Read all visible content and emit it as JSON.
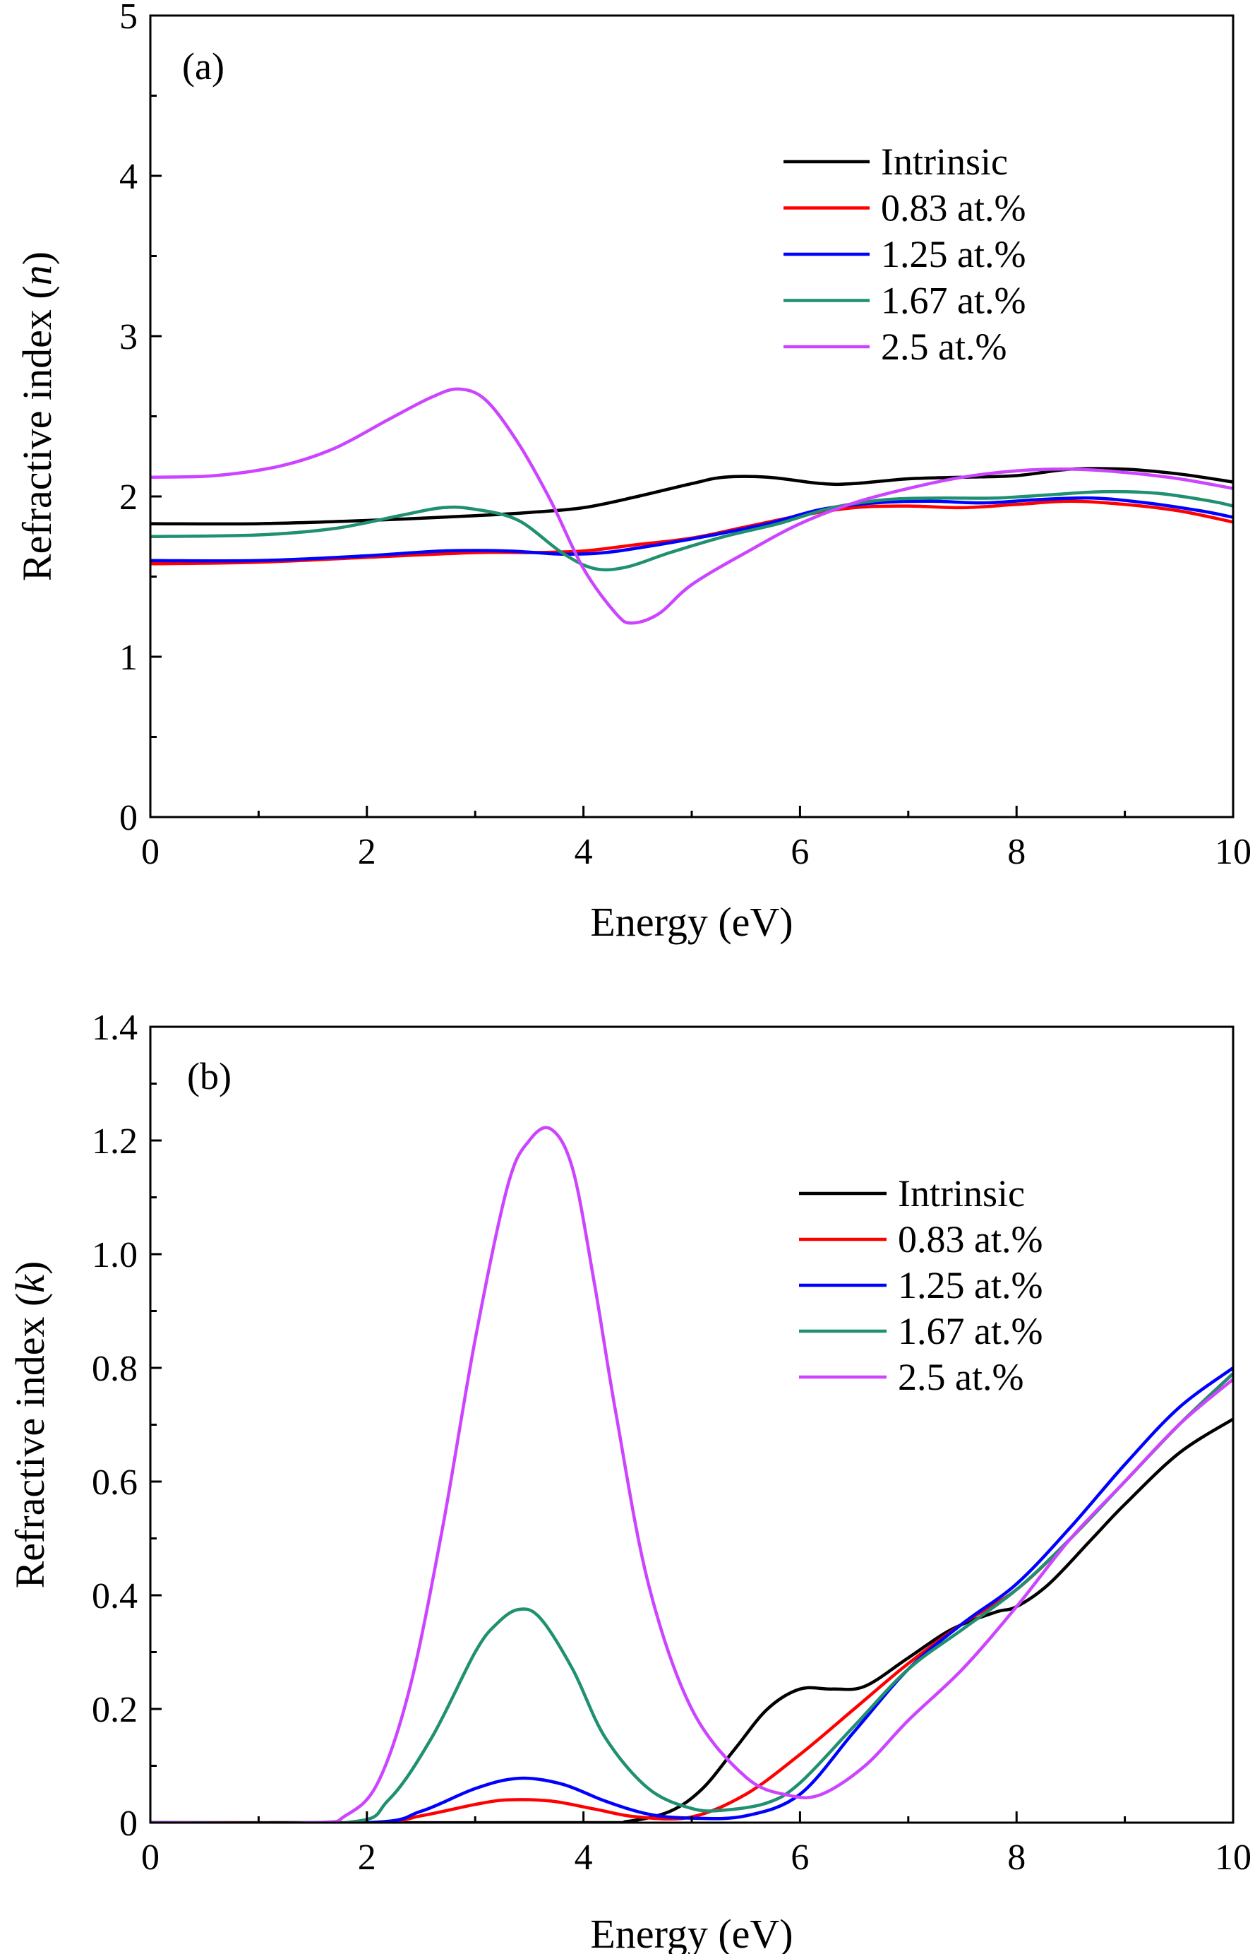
{
  "chart_data": [
    {
      "type": "line",
      "panel_label": "(a)",
      "xlabel": "Energy (eV)",
      "ylabel_text": "Refractive index (",
      "ylabel_var": "n",
      "ylabel_close": ")",
      "xlim": [
        0,
        10
      ],
      "ylim": [
        0,
        5
      ],
      "xticks": [
        "0",
        "2",
        "4",
        "6",
        "8",
        "10"
      ],
      "yticks": [
        "0",
        "1",
        "2",
        "3",
        "4",
        "5"
      ],
      "grid": false,
      "legend_position": "top-right",
      "series": [
        {
          "name": "Intrinsic",
          "color": "#000000",
          "x": [
            0,
            1,
            2,
            3,
            3.5,
            4,
            4.5,
            5,
            5.3,
            5.7,
            6.2,
            6.5,
            7,
            7.5,
            8,
            8.5,
            9,
            9.5,
            10
          ],
          "y": [
            1.83,
            1.83,
            1.85,
            1.88,
            1.9,
            1.93,
            2.0,
            2.08,
            2.12,
            2.12,
            2.08,
            2.08,
            2.11,
            2.12,
            2.13,
            2.17,
            2.17,
            2.14,
            2.09
          ]
        },
        {
          "name": "0.83 at.%",
          "color": "#ff0000",
          "x": [
            0,
            1,
            2,
            3,
            3.5,
            4,
            4.5,
            5,
            5.5,
            6,
            6.5,
            7,
            7.5,
            8,
            8.5,
            9,
            9.5,
            10
          ],
          "y": [
            1.58,
            1.59,
            1.62,
            1.65,
            1.65,
            1.66,
            1.7,
            1.74,
            1.81,
            1.88,
            1.93,
            1.94,
            1.93,
            1.95,
            1.97,
            1.95,
            1.91,
            1.84
          ]
        },
        {
          "name": "1.25 at.%",
          "color": "#0000ff",
          "x": [
            0,
            1,
            2,
            2.7,
            3.3,
            3.8,
            4.2,
            4.7,
            5.2,
            5.7,
            6.2,
            6.7,
            7.2,
            7.7,
            8.2,
            8.7,
            9.2,
            9.7,
            10
          ],
          "y": [
            1.6,
            1.6,
            1.63,
            1.66,
            1.66,
            1.64,
            1.65,
            1.7,
            1.76,
            1.83,
            1.92,
            1.96,
            1.97,
            1.96,
            1.98,
            1.99,
            1.96,
            1.91,
            1.87
          ]
        },
        {
          "name": "1.67 at.%",
          "color": "#1f9070",
          "x": [
            0,
            1,
            1.7,
            2.3,
            2.7,
            3.0,
            3.4,
            3.8,
            4.1,
            4.4,
            4.8,
            5.3,
            5.8,
            6.3,
            6.8,
            7.3,
            7.8,
            8.3,
            8.8,
            9.3,
            9.8,
            10
          ],
          "y": [
            1.75,
            1.76,
            1.8,
            1.88,
            1.93,
            1.92,
            1.85,
            1.65,
            1.55,
            1.56,
            1.65,
            1.75,
            1.83,
            1.93,
            1.98,
            1.99,
            1.99,
            2.01,
            2.03,
            2.02,
            1.97,
            1.94
          ]
        },
        {
          "name": "2.5 at.%",
          "color": "#cc44ff",
          "x": [
            0,
            0.6,
            1.2,
            1.7,
            2.2,
            2.6,
            2.85,
            3.1,
            3.4,
            3.7,
            4.0,
            4.3,
            4.45,
            4.7,
            5.0,
            5.5,
            6.0,
            6.5,
            7.0,
            7.5,
            8.0,
            8.5,
            9.0,
            9.5,
            10
          ],
          "y": [
            2.12,
            2.13,
            2.19,
            2.3,
            2.48,
            2.62,
            2.67,
            2.6,
            2.33,
            1.97,
            1.55,
            1.27,
            1.21,
            1.27,
            1.45,
            1.65,
            1.83,
            1.96,
            2.05,
            2.12,
            2.16,
            2.17,
            2.15,
            2.11,
            2.05
          ]
        }
      ]
    },
    {
      "type": "line",
      "panel_label": "(b)",
      "xlabel": "Energy (eV)",
      "ylabel_text": "Refractive index (",
      "ylabel_var": "k",
      "ylabel_close": ")",
      "xlim": [
        0,
        10
      ],
      "ylim": [
        0,
        1.4
      ],
      "xticks": [
        "0",
        "2",
        "4",
        "6",
        "8",
        "10"
      ],
      "yticks": [
        "0",
        "0.2",
        "0.4",
        "0.6",
        "0.8",
        "1.0",
        "1.2",
        "1.4"
      ],
      "grid": false,
      "legend_position": "right",
      "series": [
        {
          "name": "Intrinsic",
          "color": "#000000",
          "x": [
            0,
            4.0,
            4.4,
            4.8,
            5.1,
            5.4,
            5.7,
            6.0,
            6.3,
            6.6,
            7.0,
            7.4,
            7.8,
            8.0,
            8.3,
            8.7,
            9.0,
            9.5,
            10
          ],
          "y": [
            0,
            0,
            0.002,
            0.02,
            0.06,
            0.13,
            0.2,
            0.235,
            0.235,
            0.24,
            0.29,
            0.34,
            0.37,
            0.38,
            0.42,
            0.5,
            0.56,
            0.65,
            0.71
          ]
        },
        {
          "name": "0.83 at.%",
          "color": "#ff0000",
          "x": [
            0,
            2.0,
            2.5,
            3.0,
            3.3,
            3.7,
            4.1,
            4.5,
            5.0,
            5.5,
            6.0,
            6.5,
            7.0,
            7.5,
            8.0,
            8.5,
            9.0,
            9.5,
            10
          ],
          "y": [
            0,
            0,
            0.012,
            0.032,
            0.04,
            0.038,
            0.024,
            0.01,
            0.01,
            0.05,
            0.12,
            0.2,
            0.28,
            0.35,
            0.41,
            0.5,
            0.6,
            0.7,
            0.79
          ]
        },
        {
          "name": "1.25 at.%",
          "color": "#0000ff",
          "x": [
            0,
            2.0,
            2.5,
            3.0,
            3.4,
            3.8,
            4.2,
            4.6,
            5.0,
            5.5,
            6.0,
            6.5,
            7.0,
            7.5,
            8.0,
            8.5,
            9.0,
            9.5,
            10
          ],
          "y": [
            0,
            0,
            0.02,
            0.06,
            0.078,
            0.068,
            0.038,
            0.015,
            0.008,
            0.012,
            0.05,
            0.16,
            0.27,
            0.35,
            0.42,
            0.52,
            0.63,
            0.73,
            0.8
          ]
        },
        {
          "name": "1.67 at.%",
          "color": "#1f9070",
          "x": [
            0,
            1.8,
            2.2,
            2.6,
            3.0,
            3.2,
            3.4,
            3.6,
            3.9,
            4.2,
            4.6,
            5.0,
            5.3,
            5.7,
            6.0,
            6.5,
            7.0,
            7.5,
            8.0,
            8.5,
            9.0,
            9.5,
            10
          ],
          "y": [
            0,
            0,
            0.04,
            0.15,
            0.3,
            0.35,
            0.375,
            0.36,
            0.27,
            0.15,
            0.06,
            0.025,
            0.022,
            0.035,
            0.07,
            0.17,
            0.27,
            0.34,
            0.41,
            0.5,
            0.6,
            0.7,
            0.79
          ]
        },
        {
          "name": "2.5 at.%",
          "color": "#cc44ff",
          "x": [
            0,
            1.5,
            1.8,
            2.1,
            2.4,
            2.7,
            3.0,
            3.3,
            3.5,
            3.7,
            3.9,
            4.1,
            4.3,
            4.6,
            5.0,
            5.5,
            5.9,
            6.2,
            6.6,
            7.0,
            7.5,
            8.0,
            8.5,
            9.0,
            9.5,
            10
          ],
          "y": [
            0,
            0,
            0.012,
            0.07,
            0.24,
            0.52,
            0.85,
            1.12,
            1.2,
            1.22,
            1.15,
            0.95,
            0.72,
            0.42,
            0.2,
            0.08,
            0.048,
            0.05,
            0.1,
            0.18,
            0.27,
            0.38,
            0.5,
            0.6,
            0.7,
            0.78
          ]
        }
      ]
    }
  ]
}
